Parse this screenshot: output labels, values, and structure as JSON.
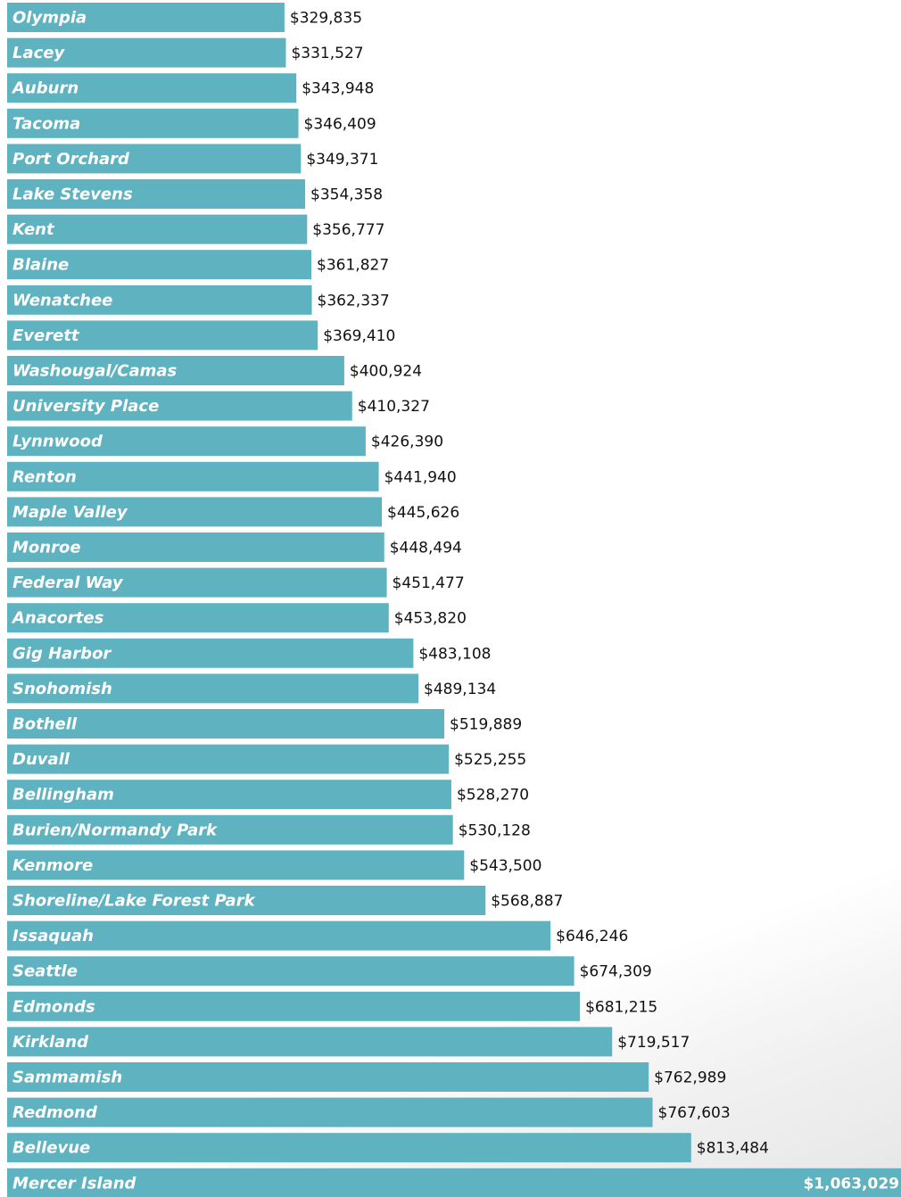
{
  "chart_data": {
    "type": "bar",
    "orientation": "horizontal",
    "title": "",
    "xlabel": "",
    "ylabel": "",
    "xlim": [
      0,
      1063029
    ],
    "grid": false,
    "legend": "none",
    "bar_color": "#5fb3c0",
    "categories": [
      "Olympia",
      "Lacey",
      "Auburn",
      "Tacoma",
      "Port Orchard",
      "Lake Stevens",
      "Kent",
      "Blaine",
      "Wenatchee",
      "Everett",
      "Washougal/Camas",
      "University Place",
      "Lynnwood",
      "Renton",
      "Maple Valley",
      "Monroe",
      "Federal Way",
      "Anacortes",
      "Gig Harbor",
      "Snohomish",
      "Bothell",
      "Duvall",
      "Bellingham",
      "Burien/Normandy Park",
      "Kenmore",
      "Shoreline/Lake Forest Park",
      "Issaquah",
      "Seattle",
      "Edmonds",
      "Kirkland",
      "Sammamish",
      "Redmond",
      "Bellevue",
      "Mercer Island"
    ],
    "values": [
      329835,
      331527,
      343948,
      346409,
      349371,
      354358,
      356777,
      361827,
      362337,
      369410,
      400924,
      410327,
      426390,
      441940,
      445626,
      448494,
      451477,
      453820,
      483108,
      489134,
      519889,
      525255,
      528270,
      530128,
      543500,
      568887,
      646246,
      674309,
      681215,
      719517,
      762989,
      767603,
      813484,
      1063029
    ],
    "value_labels": [
      "$329,835",
      "$331,527",
      "$343,948",
      "$346,409",
      "$349,371",
      "$354,358",
      "$356,777",
      "$361,827",
      "$362,337",
      "$369,410",
      "$400,924",
      "$410,327",
      "$426,390",
      "$441,940",
      "$445,626",
      "$448,494",
      "$451,477",
      "$453,820",
      "$483,108",
      "$489,134",
      "$519,889",
      "$525,255",
      "$528,270",
      "$530,128",
      "$543,500",
      "$568,887",
      "$646,246",
      "$674,309",
      "$681,215",
      "$719,517",
      "$762,989",
      "$767,603",
      "$813,484",
      "$1,063,029"
    ]
  }
}
